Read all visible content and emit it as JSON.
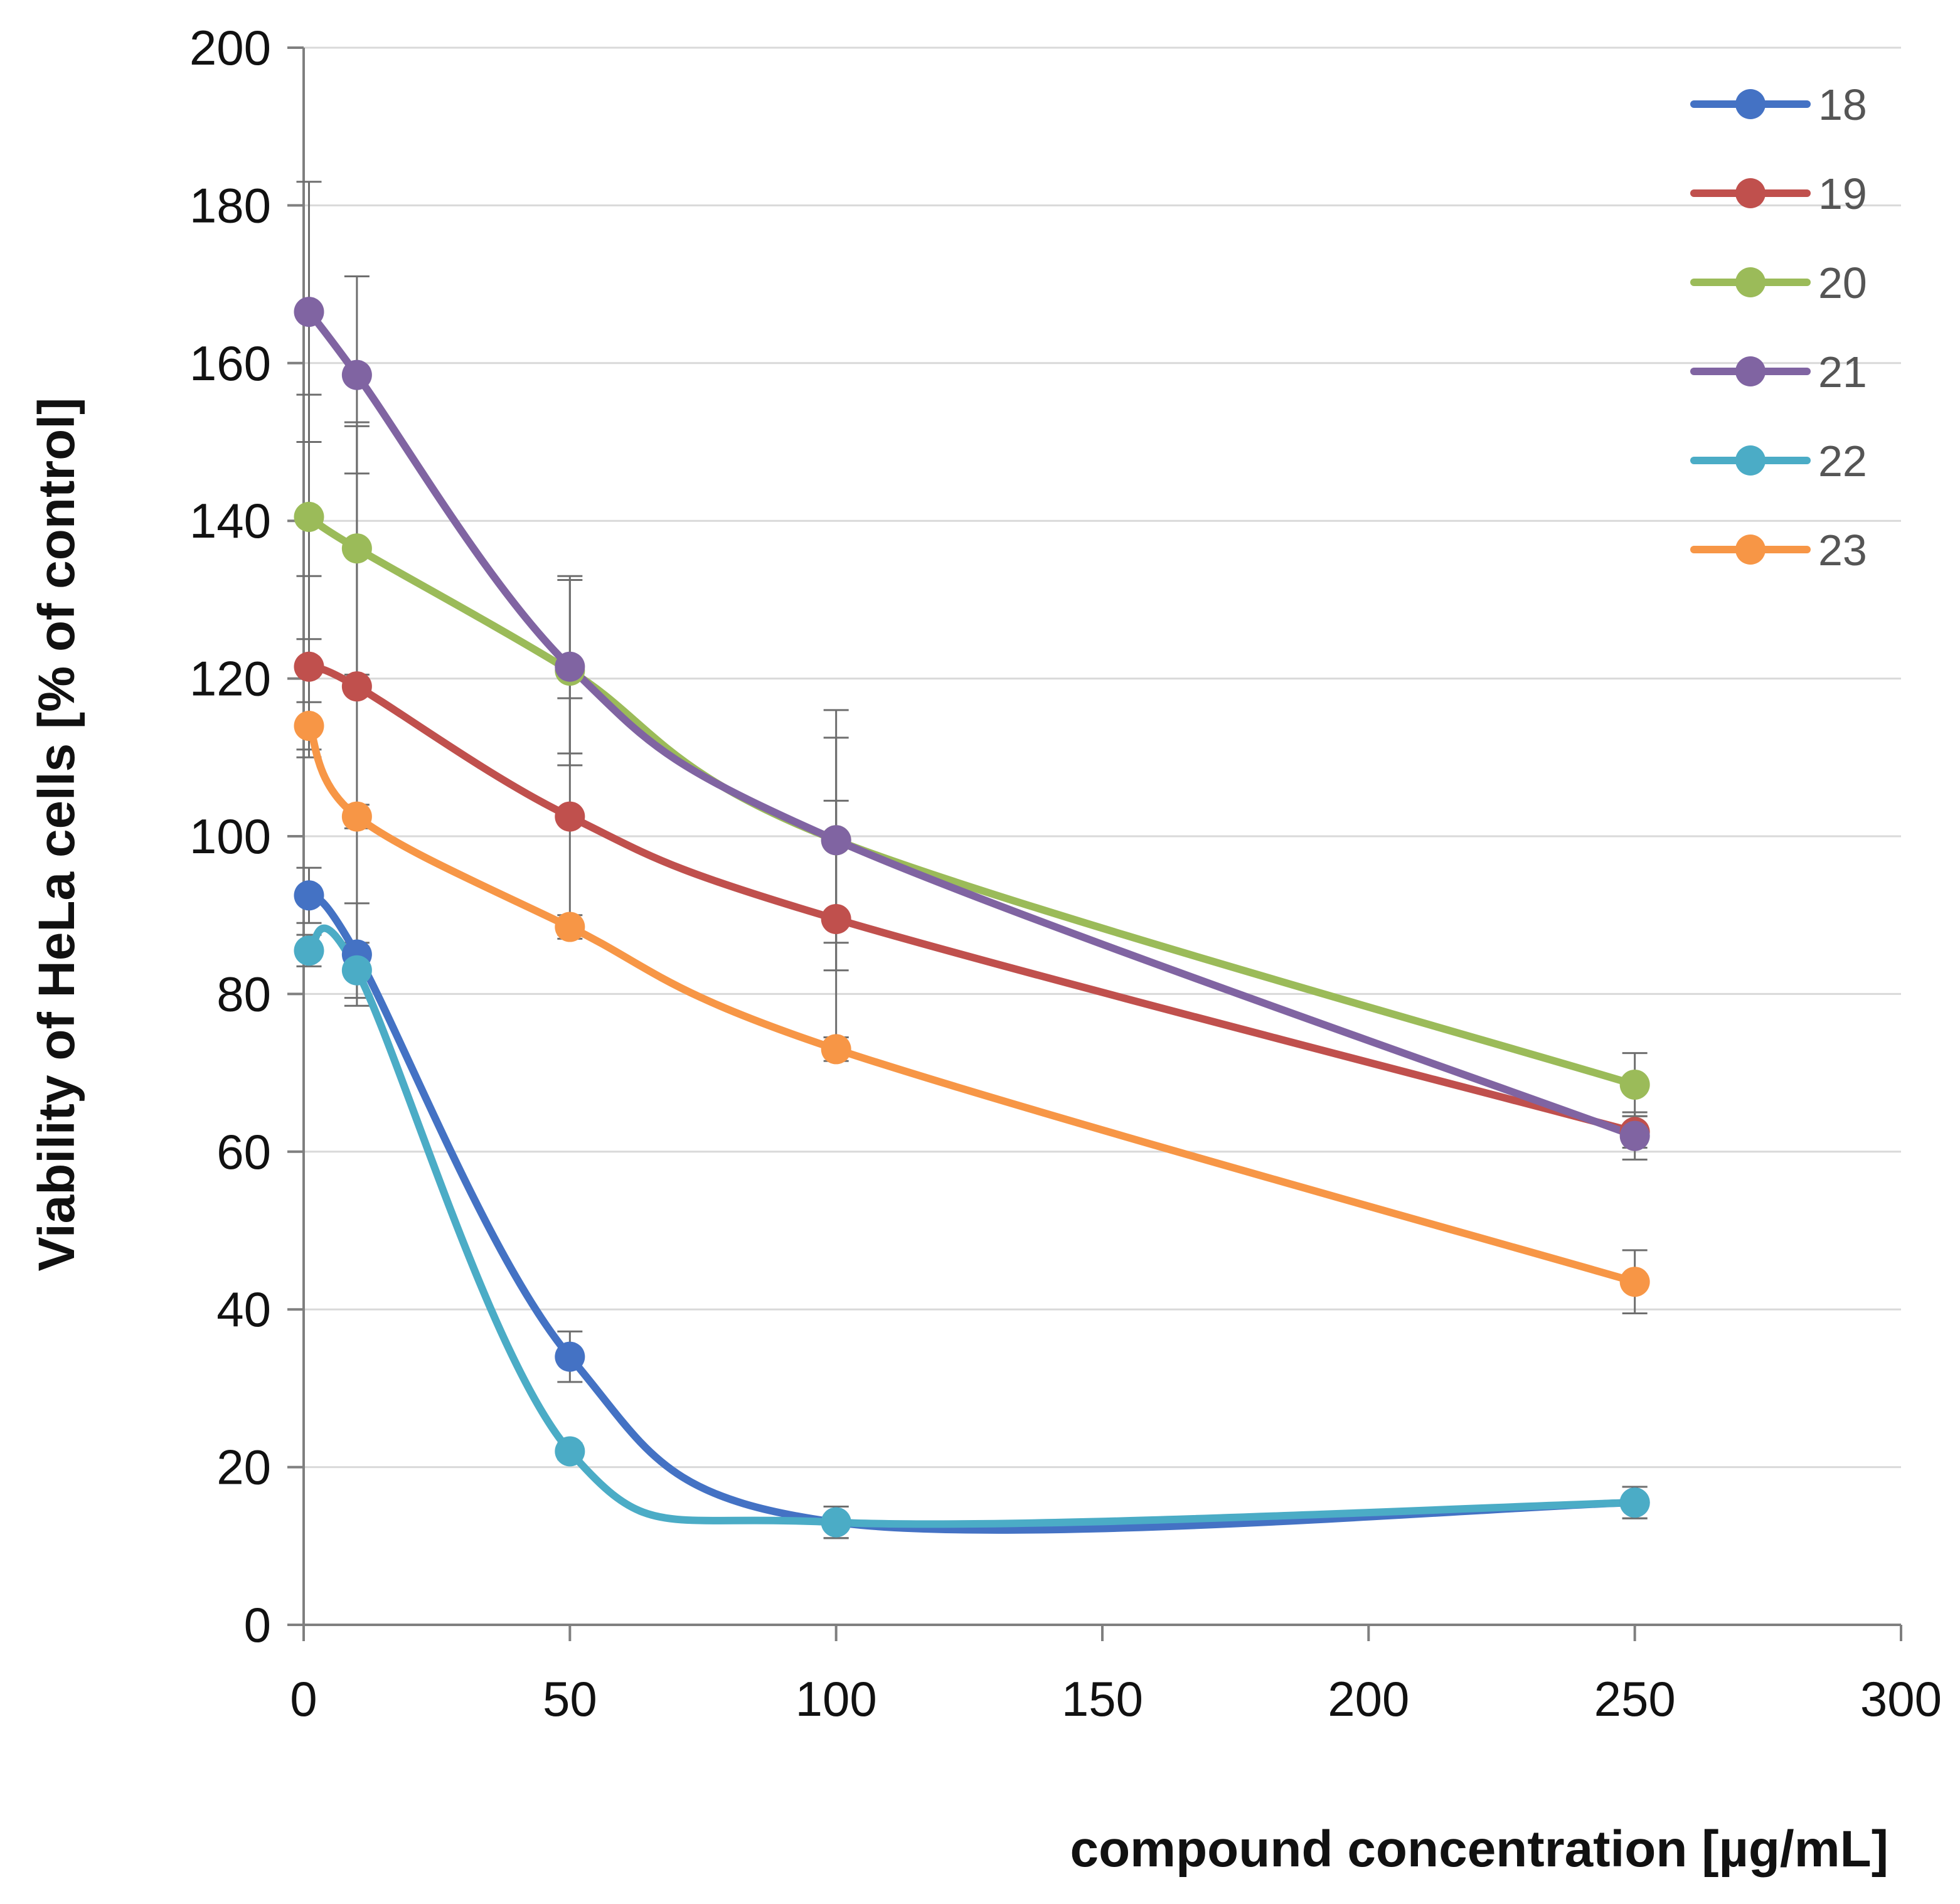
{
  "chart_data": {
    "type": "line",
    "title": "",
    "xlabel": "compound concentration [µg/mL]",
    "ylabel": "Viability of HeLa cells [% of control]",
    "xlim": [
      0,
      300
    ],
    "ylim": [
      0,
      200
    ],
    "xticks": [
      0,
      50,
      100,
      150,
      200,
      250,
      300
    ],
    "yticks": [
      0,
      20,
      40,
      60,
      80,
      100,
      120,
      140,
      160,
      180,
      200
    ],
    "xtick_labels": [
      "0",
      "50",
      "100",
      "150",
      "200",
      "250",
      "300"
    ],
    "ytick_labels": [
      "0",
      "20",
      "40",
      "60",
      "80",
      "100",
      "120",
      "140",
      "160",
      "180",
      "200"
    ],
    "grid": "horizontal",
    "legend_position": "top-right",
    "smooth": true,
    "x": [
      1,
      10,
      50,
      100,
      250
    ],
    "series": [
      {
        "name": "18",
        "color": "#4472C4",
        "values": [
          92.5,
          85,
          34,
          13,
          15.5
        ],
        "errors": [
          3.5,
          6.5,
          3.2,
          2,
          2
        ]
      },
      {
        "name": "19",
        "color": "#C0504D",
        "values": [
          121.5,
          119,
          102.5,
          89.5,
          62.5
        ],
        "errors": [
          11.5,
          33,
          15,
          15,
          2
        ]
      },
      {
        "name": "20",
        "color": "#9BBB59",
        "values": [
          140.5,
          136.5,
          121,
          99.5,
          68.5
        ],
        "errors": [
          15.5,
          16,
          12,
          13,
          4
        ]
      },
      {
        "name": "21",
        "color": "#8064A2",
        "values": [
          166.5,
          158.5,
          121.5,
          99.5,
          62
        ],
        "errors": [
          16.5,
          12.5,
          11,
          16.5,
          3
        ]
      },
      {
        "name": "22",
        "color": "#4BACC6",
        "values": [
          85.5,
          83,
          22,
          13,
          15.5
        ],
        "errors": [
          2,
          3.5,
          1,
          2,
          2
        ]
      },
      {
        "name": "23",
        "color": "#F79646",
        "values": [
          114,
          102.5,
          88.5,
          73,
          43.5
        ],
        "errors": [
          3,
          1.5,
          1.5,
          1.5,
          4
        ]
      }
    ]
  }
}
